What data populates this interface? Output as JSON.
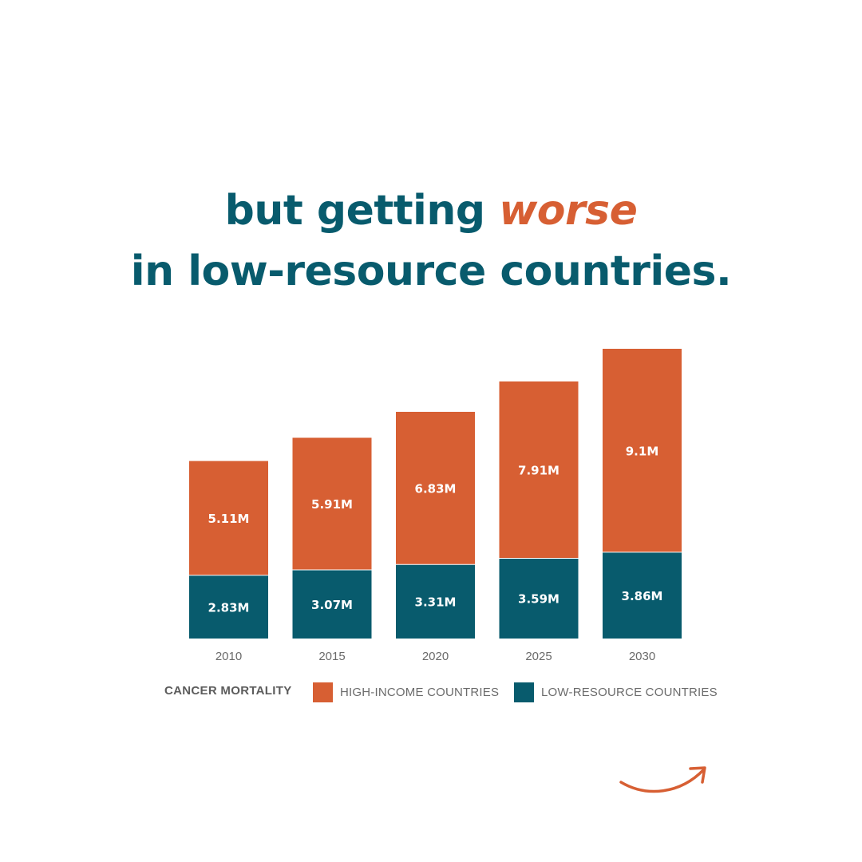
{
  "headline": {
    "line1_prefix": "but getting ",
    "line1_accent": "worse",
    "line2": "in low-resource countries."
  },
  "colors": {
    "teal": "#085b6d",
    "orange": "#d75f33",
    "tick_text": "#6b6b6b"
  },
  "legend": {
    "title": "CANCER MORTALITY",
    "items": [
      {
        "label": "HIGH-INCOME COUNTRIES",
        "color": "#d75f33"
      },
      {
        "label": "LOW-RESOURCE COUNTRIES",
        "color": "#085b6d"
      }
    ]
  },
  "chart_data": {
    "type": "bar",
    "stacked": true,
    "categories": [
      "2010",
      "2015",
      "2020",
      "2025",
      "2030"
    ],
    "series": [
      {
        "name": "LOW-RESOURCE COUNTRIES",
        "color": "#085b6d",
        "values": [
          2.83,
          3.07,
          3.31,
          3.59,
          3.86
        ],
        "labels": [
          "2.83M",
          "3.07M",
          "3.31M",
          "3.59M",
          "3.86M"
        ]
      },
      {
        "name": "HIGH-INCOME COUNTRIES",
        "color": "#d75f33",
        "values": [
          5.11,
          5.91,
          6.83,
          7.91,
          9.1
        ],
        "labels": [
          "5.11M",
          "5.91M",
          "6.83M",
          "7.91M",
          "9.1M"
        ]
      }
    ],
    "title": "",
    "xlabel": "",
    "ylabel": "",
    "ylim": [
      0,
      12.96
    ],
    "grid": false,
    "legend_position": "bottom"
  },
  "nav": {
    "next_icon": "curved-arrow-right-icon"
  }
}
